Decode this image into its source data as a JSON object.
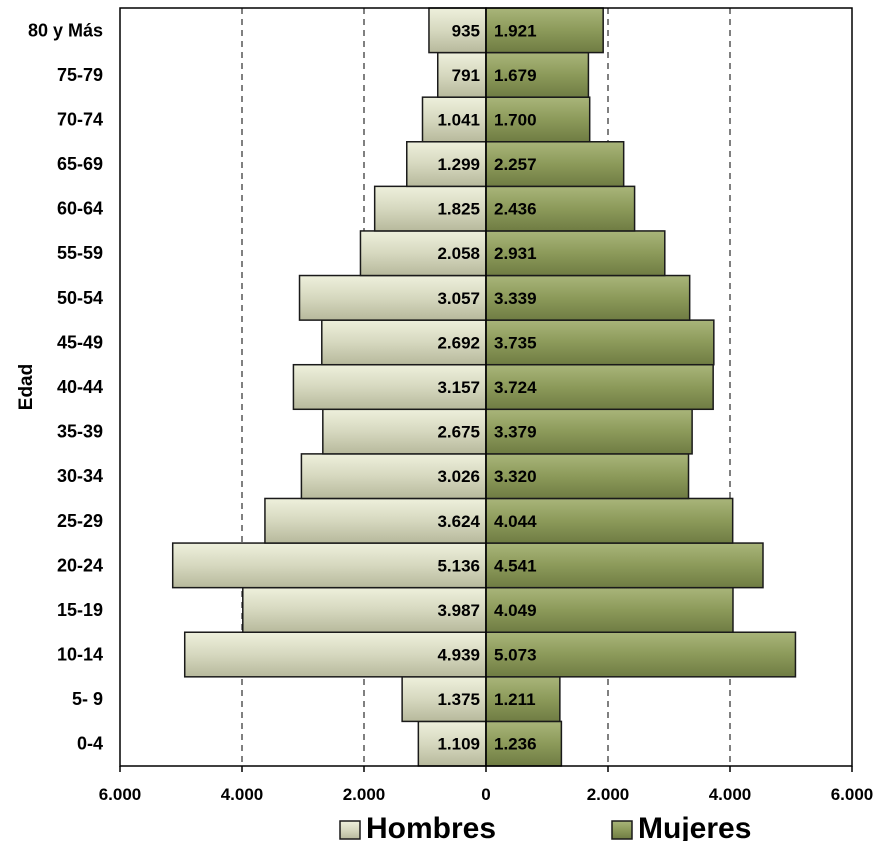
{
  "chart_data": {
    "type": "bar",
    "orientation": "horizontal",
    "layout": "population-pyramid",
    "categories": [
      "0-4",
      "5- 9",
      "10-14",
      "15-19",
      "20-24",
      "25-29",
      "30-34",
      "35-39",
      "40-44",
      "45-49",
      "50-54",
      "55-59",
      "60-64",
      "65-69",
      "70-74",
      "75-79",
      "80 y Más"
    ],
    "series": [
      {
        "name": "Hombres",
        "side": "left",
        "color": "#d6d8bf",
        "values": [
          1109,
          1375,
          4939,
          3987,
          5136,
          3624,
          3026,
          2675,
          3157,
          2692,
          3057,
          2058,
          1825,
          1299,
          1041,
          791,
          935
        ],
        "labels": [
          "1.109",
          "1.375",
          "4.939",
          "3.987",
          "5.136",
          "3.624",
          "3.026",
          "2.675",
          "3.157",
          "2.692",
          "3.057",
          "2.058",
          "1.825",
          "1.299",
          "1.041",
          "791",
          "935"
        ]
      },
      {
        "name": "Mujeres",
        "side": "right",
        "color": "#8c9a5a",
        "values": [
          1236,
          1211,
          5073,
          4049,
          4541,
          4044,
          3320,
          3379,
          3724,
          3735,
          3339,
          2931,
          2436,
          2257,
          1700,
          1679,
          1921
        ],
        "labels": [
          "1.236",
          "1.211",
          "5.073",
          "4.049",
          "4.541",
          "4.044",
          "3.320",
          "3.379",
          "3.724",
          "3.735",
          "3.339",
          "2.931",
          "2.436",
          "2.257",
          "1.700",
          "1.679",
          "1.921"
        ]
      }
    ],
    "xlim": [
      -6000,
      6000
    ],
    "xticks": [
      -6000,
      -4000,
      -2000,
      0,
      2000,
      4000,
      6000
    ],
    "xtick_labels": [
      "6.000",
      "4.000",
      "2.000",
      "0",
      "2.000",
      "4.000",
      "6.000"
    ],
    "ylabel": "Edad",
    "xlabel": "",
    "title": "",
    "grid": "vertical-dashed",
    "legend": {
      "placement": "bottom",
      "entries": [
        "Hombres",
        "Mujeres"
      ]
    }
  }
}
